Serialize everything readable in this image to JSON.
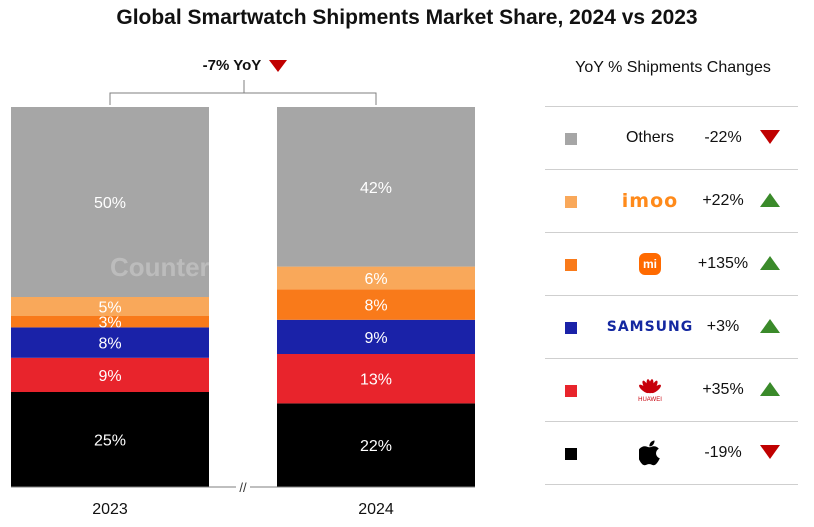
{
  "title": "Global Smartwatch Shipments Market Share, 2024 vs 2023",
  "total_change": "-7% YoY",
  "legend_title": "YoY % Shipments Changes",
  "watermark": "Counterpoint",
  "axis_break": "//",
  "colors": {
    "others": "#a6a6a6",
    "imoo": "#f9a85a",
    "xiaomi": "#f97a1a",
    "samsung": "#1a22a8",
    "huawei": "#e8242c",
    "apple": "#000000",
    "up": "#3a8a2a",
    "down": "#c00000"
  },
  "chart_data": {
    "type": "bar",
    "stacked": true,
    "categories": [
      "2023",
      "2024"
    ],
    "series": [
      {
        "name": "Apple",
        "values": [
          25,
          22
        ],
        "labels": [
          "25%",
          "22%"
        ],
        "color": "#000000"
      },
      {
        "name": "Huawei",
        "values": [
          9,
          13
        ],
        "labels": [
          "9%",
          "13%"
        ],
        "color": "#e8242c"
      },
      {
        "name": "Samsung",
        "values": [
          8,
          9
        ],
        "labels": [
          "8%",
          "9%"
        ],
        "color": "#1a22a8"
      },
      {
        "name": "Xiaomi",
        "values": [
          3,
          8
        ],
        "labels": [
          "3%",
          "8%"
        ],
        "color": "#f97a1a"
      },
      {
        "name": "imoo",
        "values": [
          5,
          6
        ],
        "labels": [
          "5%",
          "6%"
        ],
        "color": "#f9a85a"
      },
      {
        "name": "Others",
        "values": [
          50,
          42
        ],
        "labels": [
          "50%",
          "42%"
        ],
        "color": "#a6a6a6"
      }
    ],
    "total_heights": [
      100,
      93
    ]
  },
  "legend": [
    {
      "key": "others",
      "brand": "Others",
      "change": "-22%",
      "direction": "down",
      "icon": "others-text"
    },
    {
      "key": "imoo",
      "brand": "imoo",
      "change": "+22%",
      "direction": "up",
      "icon": "imoo-logo"
    },
    {
      "key": "xiaomi",
      "brand": "mi",
      "change": "+135%",
      "direction": "up",
      "icon": "xiaomi-logo"
    },
    {
      "key": "samsung",
      "brand": "SAMSUNG",
      "change": "+3%",
      "direction": "up",
      "icon": "samsung-logo"
    },
    {
      "key": "huawei",
      "brand": "HUAWEI",
      "change": "+35%",
      "direction": "up",
      "icon": "huawei-logo"
    },
    {
      "key": "apple",
      "brand": "Apple",
      "change": "-19%",
      "direction": "down",
      "icon": "apple-logo"
    }
  ]
}
